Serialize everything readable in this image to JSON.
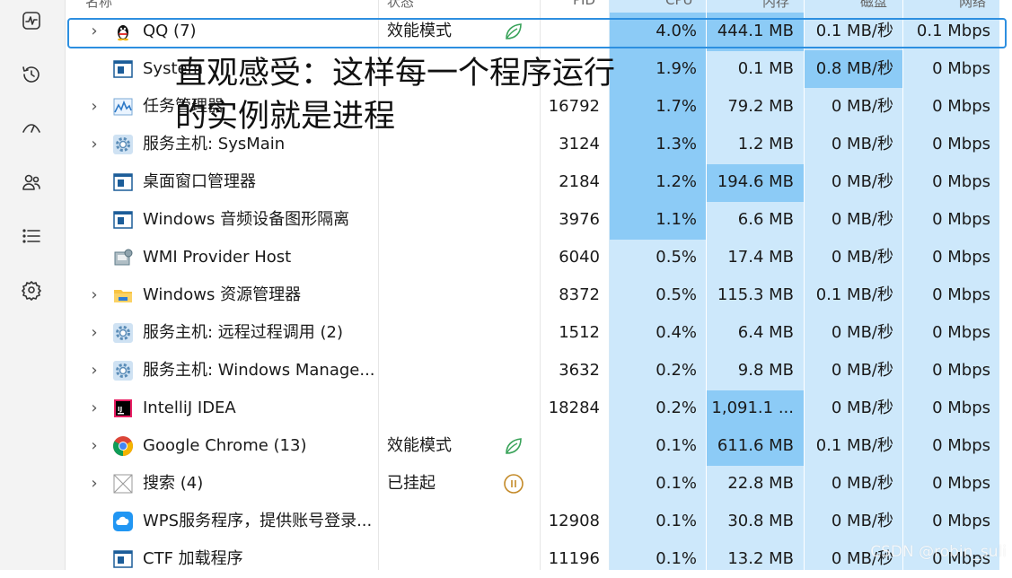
{
  "header": {
    "name": "名称",
    "status": "状态",
    "pid": "PID",
    "cpu": "CPU",
    "memory": "内存",
    "disk": "磁盘",
    "network": "网络"
  },
  "sidebar": {
    "items": [
      {
        "icon": "performance-icon"
      },
      {
        "icon": "app-history-icon"
      },
      {
        "icon": "startup-icon"
      },
      {
        "icon": "users-icon"
      },
      {
        "icon": "details-icon"
      },
      {
        "icon": "services-icon"
      }
    ]
  },
  "processes": [
    {
      "name": "QQ (7)",
      "expand": true,
      "icon": "qq-icon",
      "status": "效能模式",
      "status_icon": "leaf-icon",
      "pid": "",
      "cpu": "4.0%",
      "mem": "444.1 MB",
      "disk": "0.1 MB/秒",
      "net": "0.1 Mbps"
    },
    {
      "name": "System",
      "expand": false,
      "icon": "window-icon",
      "status": "",
      "status_icon": "",
      "pid": "",
      "cpu": "1.9%",
      "mem": "0.1 MB",
      "disk": "0.8 MB/秒",
      "net": "0 Mbps"
    },
    {
      "name": "任务管理器",
      "expand": true,
      "icon": "task-manager-icon",
      "status": "",
      "status_icon": "",
      "pid": "16792",
      "cpu": "1.7%",
      "mem": "79.2 MB",
      "disk": "0 MB/秒",
      "net": "0 Mbps"
    },
    {
      "name": "服务主机: SysMain",
      "expand": true,
      "icon": "gear-icon",
      "status": "",
      "status_icon": "",
      "pid": "3124",
      "cpu": "1.3%",
      "mem": "1.2 MB",
      "disk": "0 MB/秒",
      "net": "0 Mbps"
    },
    {
      "name": "桌面窗口管理器",
      "expand": false,
      "icon": "window-icon",
      "status": "",
      "status_icon": "",
      "pid": "2184",
      "cpu": "1.2%",
      "mem": "194.6 MB",
      "disk": "0 MB/秒",
      "net": "0 Mbps"
    },
    {
      "name": "Windows 音频设备图形隔离",
      "expand": false,
      "icon": "window-icon",
      "status": "",
      "status_icon": "",
      "pid": "3976",
      "cpu": "1.1%",
      "mem": "6.6 MB",
      "disk": "0 MB/秒",
      "net": "0 Mbps"
    },
    {
      "name": "WMI Provider Host",
      "expand": false,
      "icon": "wmi-icon",
      "status": "",
      "status_icon": "",
      "pid": "6040",
      "cpu": "0.5%",
      "mem": "17.4 MB",
      "disk": "0 MB/秒",
      "net": "0 Mbps"
    },
    {
      "name": "Windows 资源管理器",
      "expand": true,
      "icon": "folder-icon",
      "status": "",
      "status_icon": "",
      "pid": "8372",
      "cpu": "0.5%",
      "mem": "115.3 MB",
      "disk": "0.1 MB/秒",
      "net": "0 Mbps"
    },
    {
      "name": "服务主机: 远程过程调用 (2)",
      "expand": true,
      "icon": "gear-icon",
      "status": "",
      "status_icon": "",
      "pid": "1512",
      "cpu": "0.4%",
      "mem": "6.4 MB",
      "disk": "0 MB/秒",
      "net": "0 Mbps"
    },
    {
      "name": "服务主机: Windows Manage...",
      "expand": true,
      "icon": "gear-icon",
      "status": "",
      "status_icon": "",
      "pid": "3632",
      "cpu": "0.2%",
      "mem": "9.8 MB",
      "disk": "0 MB/秒",
      "net": "0 Mbps"
    },
    {
      "name": "IntelliJ IDEA",
      "expand": true,
      "icon": "intellij-icon",
      "status": "",
      "status_icon": "",
      "pid": "18284",
      "cpu": "0.2%",
      "mem": "1,091.1 ...",
      "disk": "0 MB/秒",
      "net": "0 Mbps"
    },
    {
      "name": "Google Chrome (13)",
      "expand": true,
      "icon": "chrome-icon",
      "status": "效能模式",
      "status_icon": "leaf-icon",
      "pid": "",
      "cpu": "0.1%",
      "mem": "611.6 MB",
      "disk": "0.1 MB/秒",
      "net": "0 Mbps"
    },
    {
      "name": "搜索 (4)",
      "expand": true,
      "icon": "search-app-icon",
      "status": "已挂起",
      "status_icon": "pause-icon",
      "pid": "",
      "cpu": "0.1%",
      "mem": "22.8 MB",
      "disk": "0 MB/秒",
      "net": "0 Mbps"
    },
    {
      "name": "WPS服务程序，提供账号登录...",
      "expand": false,
      "icon": "cloud-icon",
      "status": "",
      "status_icon": "",
      "pid": "12908",
      "cpu": "0.1%",
      "mem": "30.8 MB",
      "disk": "0 MB/秒",
      "net": "0 Mbps"
    },
    {
      "name": "CTF 加载程序",
      "expand": false,
      "icon": "window-icon",
      "status": "",
      "status_icon": "",
      "pid": "11196",
      "cpu": "0.1%",
      "mem": "13.2 MB",
      "disk": "0 MB/秒",
      "net": "0 Mbps"
    }
  ],
  "annotation": {
    "line1": "直观感受：这样每一个程序运行",
    "line2": "的实例就是进程"
  },
  "watermark": "CSDN @robin_suli",
  "colors": {
    "heat_light": "#cde8fb",
    "heat_medium": "#8ccbf6",
    "selection_border": "#2d8fe0"
  }
}
